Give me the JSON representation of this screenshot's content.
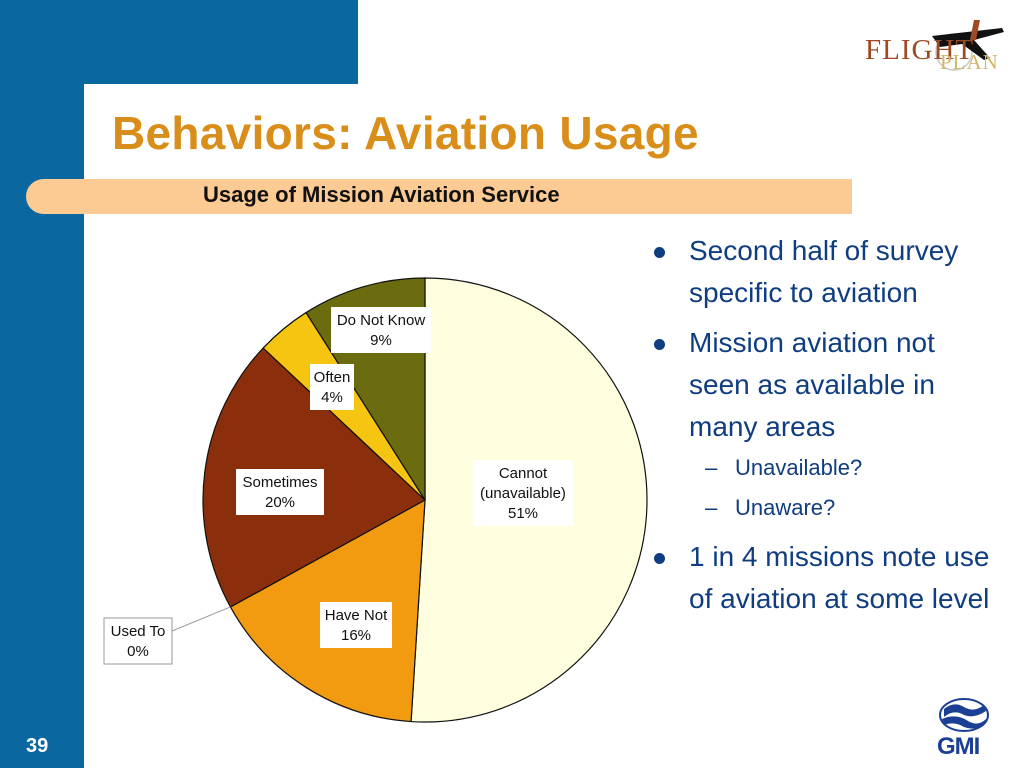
{
  "slide": {
    "title": "Behaviors: Aviation Usage",
    "page_number": "39"
  },
  "logos": {
    "flightplan_top": "FLIGHT",
    "flightplan_bottom": "PLAN",
    "gmi": "GMI"
  },
  "chart_data": {
    "type": "pie",
    "title": "Usage of Mission Aviation Service",
    "slices": [
      {
        "label": "Cannot (unavailable)",
        "value": 51,
        "pct_text": "51%",
        "color": "#ffffe0"
      },
      {
        "label": "Have Not",
        "value": 16,
        "pct_text": "16%",
        "color": "#f29a10"
      },
      {
        "label": "Used To",
        "value": 0,
        "pct_text": "0%",
        "color": "#d97a10"
      },
      {
        "label": "Sometimes",
        "value": 20,
        "pct_text": "20%",
        "color": "#8b2e0c"
      },
      {
        "label": "Often",
        "value": 4,
        "pct_text": "4%",
        "color": "#f6c512"
      },
      {
        "label": "Do Not Know",
        "value": 9,
        "pct_text": "9%",
        "color": "#6b6b10"
      }
    ]
  },
  "bullets": [
    {
      "level": 1,
      "text": "Second half of survey specific to aviation"
    },
    {
      "level": 1,
      "text": "Mission aviation not seen as available in many areas"
    },
    {
      "level": 2,
      "text": "Unavailable?"
    },
    {
      "level": 2,
      "text": "Unaware?"
    },
    {
      "level": 1,
      "text": "1 in 4 missions note use of aviation at some level"
    }
  ]
}
